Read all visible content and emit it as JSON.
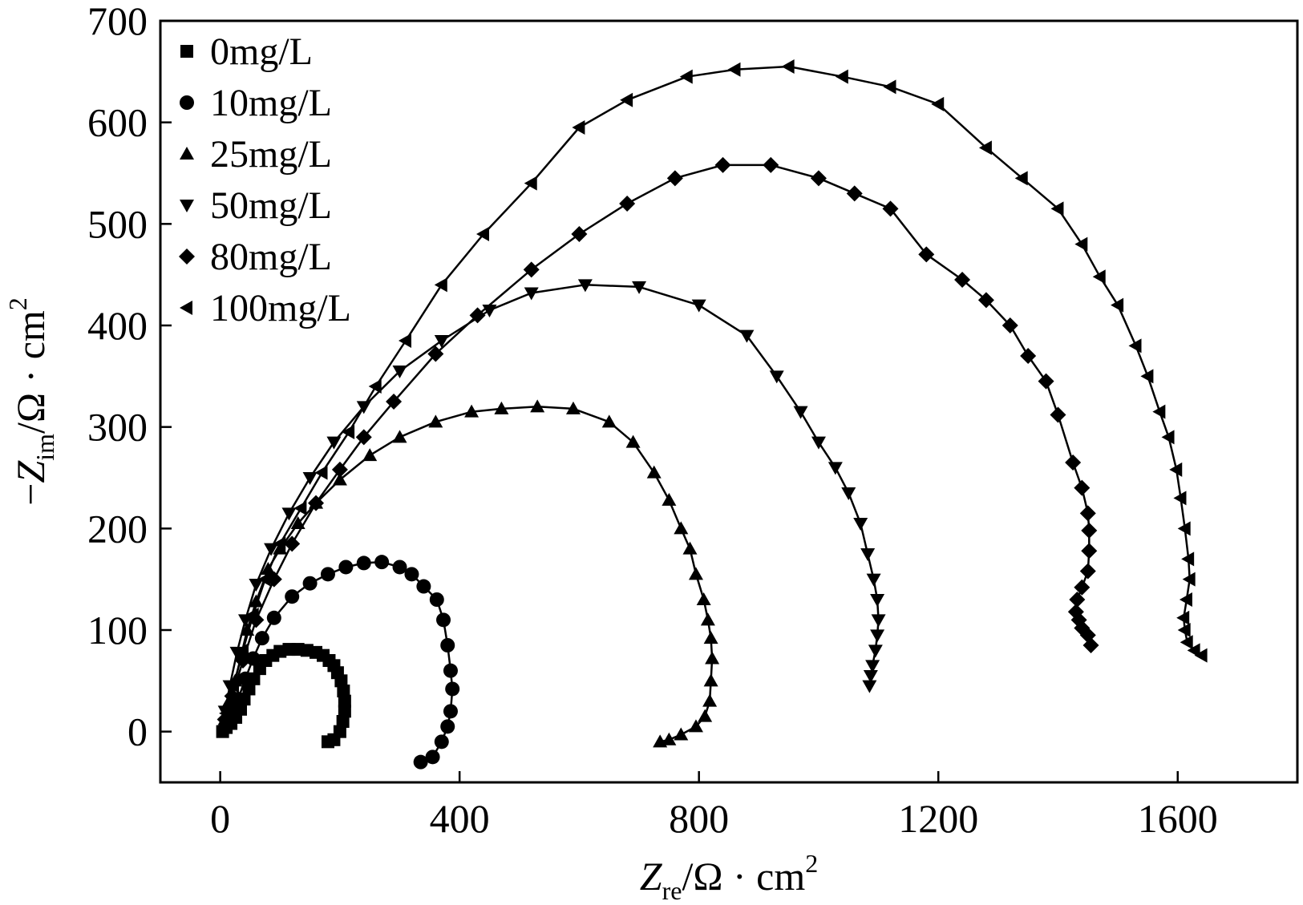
{
  "chart_data": {
    "type": "scatter",
    "xlabel": {
      "var": "Z",
      "sub": "re",
      "unit": "/Ω · cm",
      "sup": "2"
    },
    "ylabel": {
      "prefix": "−",
      "var": "Z",
      "sub": "im",
      "unit": "/Ω · cm",
      "sup": "2"
    },
    "xlim": [
      -100,
      1800
    ],
    "ylim": [
      -50,
      700
    ],
    "xticks": [
      0,
      400,
      800,
      1200,
      1600
    ],
    "yticks": [
      0,
      100,
      200,
      300,
      400,
      500,
      600,
      700
    ],
    "legend_position": "top-left",
    "series": [
      {
        "name": "0mg/L",
        "marker": "square",
        "points": [
          [
            180,
            -10
          ],
          [
            190,
            -8
          ],
          [
            200,
            0
          ],
          [
            205,
            10
          ],
          [
            208,
            20
          ],
          [
            208,
            30
          ],
          [
            206,
            40
          ],
          [
            202,
            50
          ],
          [
            196,
            58
          ],
          [
            190,
            65
          ],
          [
            182,
            70
          ],
          [
            172,
            75
          ],
          [
            160,
            78
          ],
          [
            145,
            80
          ],
          [
            130,
            81
          ],
          [
            115,
            81
          ],
          [
            100,
            79
          ],
          [
            88,
            75
          ],
          [
            76,
            70
          ],
          [
            66,
            62
          ],
          [
            56,
            52
          ],
          [
            48,
            42
          ],
          [
            40,
            32
          ],
          [
            34,
            22
          ],
          [
            26,
            14
          ],
          [
            18,
            8
          ],
          [
            10,
            4
          ],
          [
            4,
            0
          ]
        ]
      },
      {
        "name": "10mg/L",
        "marker": "circle",
        "points": [
          [
            335,
            -30
          ],
          [
            355,
            -25
          ],
          [
            370,
            -10
          ],
          [
            380,
            5
          ],
          [
            385,
            20
          ],
          [
            388,
            42
          ],
          [
            385,
            60
          ],
          [
            380,
            85
          ],
          [
            373,
            110
          ],
          [
            362,
            130
          ],
          [
            340,
            143
          ],
          [
            320,
            155
          ],
          [
            300,
            162
          ],
          [
            270,
            167
          ],
          [
            240,
            166
          ],
          [
            210,
            162
          ],
          [
            180,
            155
          ],
          [
            150,
            146
          ],
          [
            120,
            133
          ],
          [
            90,
            112
          ],
          [
            70,
            92
          ],
          [
            55,
            72
          ],
          [
            42,
            52
          ],
          [
            30,
            32
          ],
          [
            20,
            18
          ],
          [
            10,
            5
          ]
        ]
      },
      {
        "name": "25mg/L",
        "marker": "triangle-up",
        "points": [
          [
            735,
            -10
          ],
          [
            750,
            -8
          ],
          [
            770,
            -3
          ],
          [
            795,
            5
          ],
          [
            810,
            15
          ],
          [
            818,
            30
          ],
          [
            820,
            50
          ],
          [
            822,
            72
          ],
          [
            820,
            92
          ],
          [
            815,
            110
          ],
          [
            808,
            130
          ],
          [
            795,
            155
          ],
          [
            785,
            180
          ],
          [
            770,
            200
          ],
          [
            750,
            228
          ],
          [
            725,
            255
          ],
          [
            690,
            285
          ],
          [
            650,
            305
          ],
          [
            590,
            318
          ],
          [
            530,
            320
          ],
          [
            470,
            318
          ],
          [
            420,
            315
          ],
          [
            360,
            305
          ],
          [
            300,
            290
          ],
          [
            250,
            272
          ],
          [
            200,
            248
          ],
          [
            160,
            225
          ],
          [
            130,
            205
          ],
          [
            100,
            180
          ],
          [
            80,
            160
          ],
          [
            60,
            128
          ],
          [
            45,
            100
          ],
          [
            35,
            75
          ],
          [
            25,
            50
          ],
          [
            15,
            30
          ],
          [
            8,
            12
          ]
        ]
      },
      {
        "name": "50mg/L",
        "marker": "triangle-down",
        "points": [
          [
            1085,
            45
          ],
          [
            1087,
            55
          ],
          [
            1090,
            65
          ],
          [
            1095,
            80
          ],
          [
            1098,
            95
          ],
          [
            1100,
            110
          ],
          [
            1098,
            130
          ],
          [
            1092,
            150
          ],
          [
            1082,
            175
          ],
          [
            1070,
            205
          ],
          [
            1050,
            235
          ],
          [
            1028,
            260
          ],
          [
            1000,
            285
          ],
          [
            970,
            315
          ],
          [
            930,
            350
          ],
          [
            880,
            390
          ],
          [
            800,
            420
          ],
          [
            700,
            438
          ],
          [
            610,
            440
          ],
          [
            520,
            432
          ],
          [
            450,
            415
          ],
          [
            370,
            385
          ],
          [
            300,
            355
          ],
          [
            240,
            320
          ],
          [
            190,
            285
          ],
          [
            150,
            250
          ],
          [
            115,
            215
          ],
          [
            85,
            180
          ],
          [
            60,
            145
          ],
          [
            42,
            110
          ],
          [
            28,
            78
          ],
          [
            16,
            45
          ],
          [
            8,
            20
          ]
        ]
      },
      {
        "name": "80mg/L",
        "marker": "diamond",
        "points": [
          [
            1455,
            85
          ],
          [
            1450,
            95
          ],
          [
            1440,
            102
          ],
          [
            1435,
            110
          ],
          [
            1430,
            118
          ],
          [
            1432,
            130
          ],
          [
            1440,
            142
          ],
          [
            1450,
            158
          ],
          [
            1452,
            178
          ],
          [
            1452,
            198
          ],
          [
            1450,
            215
          ],
          [
            1440,
            240
          ],
          [
            1425,
            265
          ],
          [
            1400,
            312
          ],
          [
            1380,
            345
          ],
          [
            1350,
            370
          ],
          [
            1320,
            400
          ],
          [
            1280,
            425
          ],
          [
            1240,
            445
          ],
          [
            1180,
            470
          ],
          [
            1120,
            515
          ],
          [
            1060,
            530
          ],
          [
            1000,
            545
          ],
          [
            920,
            558
          ],
          [
            840,
            558
          ],
          [
            760,
            545
          ],
          [
            680,
            520
          ],
          [
            600,
            490
          ],
          [
            520,
            455
          ],
          [
            430,
            410
          ],
          [
            360,
            372
          ],
          [
            290,
            325
          ],
          [
            240,
            290
          ],
          [
            200,
            258
          ],
          [
            160,
            225
          ],
          [
            120,
            185
          ],
          [
            90,
            150
          ],
          [
            60,
            110
          ],
          [
            38,
            70
          ],
          [
            20,
            35
          ],
          [
            8,
            12
          ]
        ]
      },
      {
        "name": "100mg/L",
        "marker": "triangle-left",
        "points": [
          [
            1640,
            75
          ],
          [
            1628,
            80
          ],
          [
            1616,
            88
          ],
          [
            1612,
            100
          ],
          [
            1610,
            112
          ],
          [
            1615,
            130
          ],
          [
            1620,
            150
          ],
          [
            1618,
            170
          ],
          [
            1612,
            200
          ],
          [
            1605,
            230
          ],
          [
            1598,
            258
          ],
          [
            1585,
            290
          ],
          [
            1570,
            315
          ],
          [
            1550,
            350
          ],
          [
            1530,
            380
          ],
          [
            1500,
            420
          ],
          [
            1470,
            448
          ],
          [
            1440,
            480
          ],
          [
            1400,
            515
          ],
          [
            1340,
            545
          ],
          [
            1280,
            575
          ],
          [
            1200,
            618
          ],
          [
            1120,
            635
          ],
          [
            1040,
            645
          ],
          [
            950,
            655
          ],
          [
            860,
            652
          ],
          [
            780,
            645
          ],
          [
            680,
            622
          ],
          [
            600,
            595
          ],
          [
            520,
            540
          ],
          [
            440,
            490
          ],
          [
            370,
            440
          ],
          [
            310,
            385
          ],
          [
            260,
            340
          ],
          [
            215,
            295
          ],
          [
            170,
            255
          ],
          [
            135,
            220
          ],
          [
            100,
            185
          ],
          [
            75,
            150
          ],
          [
            55,
            115
          ],
          [
            38,
            80
          ],
          [
            22,
            45
          ],
          [
            10,
            18
          ]
        ]
      }
    ]
  }
}
